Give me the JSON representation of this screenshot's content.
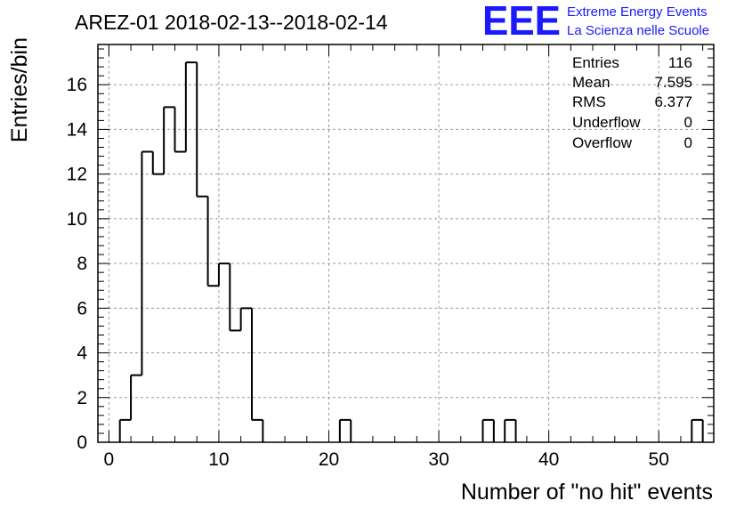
{
  "logo": {
    "mark": "EEE",
    "line1": "Extreme Energy Events",
    "line2": "La Scienza nelle Scuole",
    "color": "#1a1aff"
  },
  "stats": {
    "rows": [
      {
        "label": "Entries",
        "value": "116"
      },
      {
        "label": "Mean",
        "value": "7.595"
      },
      {
        "label": "RMS",
        "value": "6.377"
      },
      {
        "label": "Underflow",
        "value": "0"
      },
      {
        "label": "Overflow",
        "value": "0"
      }
    ]
  },
  "chart_data": {
    "type": "bar",
    "title": "AREZ-01 2018-02-13--2018-02-14",
    "xlabel": "Number of \"no hit\" events",
    "ylabel": "Entries/bin",
    "xlim": [
      -1,
      55
    ],
    "ylim": [
      0,
      17.8
    ],
    "bin_width": 1,
    "xticks": [
      0,
      10,
      20,
      30,
      40,
      50
    ],
    "yticks": [
      0,
      2,
      4,
      6,
      8,
      10,
      12,
      14,
      16
    ],
    "grid": true,
    "bins": [
      {
        "x": 0,
        "y": 0
      },
      {
        "x": 1,
        "y": 1
      },
      {
        "x": 2,
        "y": 3
      },
      {
        "x": 3,
        "y": 13
      },
      {
        "x": 4,
        "y": 12
      },
      {
        "x": 5,
        "y": 15
      },
      {
        "x": 6,
        "y": 13
      },
      {
        "x": 7,
        "y": 17
      },
      {
        "x": 8,
        "y": 11
      },
      {
        "x": 9,
        "y": 7
      },
      {
        "x": 10,
        "y": 8
      },
      {
        "x": 11,
        "y": 5
      },
      {
        "x": 12,
        "y": 6
      },
      {
        "x": 13,
        "y": 1
      },
      {
        "x": 21,
        "y": 1
      },
      {
        "x": 34,
        "y": 1
      },
      {
        "x": 36,
        "y": 1
      },
      {
        "x": 53,
        "y": 1
      }
    ]
  }
}
